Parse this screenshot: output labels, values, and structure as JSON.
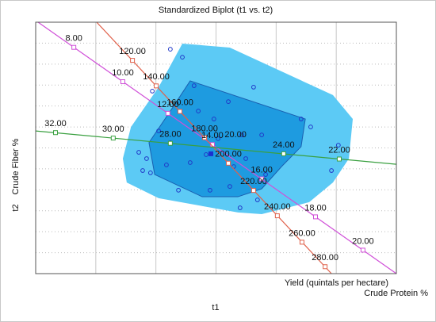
{
  "chart_data": {
    "type": "biplot",
    "title": "Standardized Biplot (t1 vs. t2)",
    "xlabel": "t1",
    "ylabel": "t2",
    "xlim": [
      -6,
      6
    ],
    "ylim": [
      -6,
      6
    ],
    "xticks": [
      -6,
      -4,
      -2,
      0,
      2,
      4,
      6
    ],
    "yticks": [
      -6,
      -5,
      -4,
      -3,
      -2,
      -1,
      0,
      1,
      2,
      3,
      4,
      5,
      6
    ],
    "grid": true,
    "hulls": [
      {
        "color": "#5ccaf5",
        "x": [
          -1.12,
          0.46,
          3.89,
          4.55,
          4.42,
          3.89,
          3.1,
          1.52,
          0.73,
          -1.91,
          -2.97,
          -3.1,
          -2.83,
          -1.91
        ],
        "y": [
          4.98,
          4.79,
          2.52,
          1.38,
          -0.51,
          -1.65,
          -2.59,
          -3.16,
          -3.08,
          -2.4,
          -1.65,
          -0.51,
          1.0,
          2.9
        ]
      },
      {
        "color": "#1e9be0",
        "x": [
          -0.86,
          2.97,
          2.83,
          2.18,
          1.52,
          0.73,
          -0.46,
          -2.04,
          -2.23,
          -1.52
        ],
        "y": [
          3.2,
          1.38,
          0.06,
          -0.89,
          -1.95,
          -2.33,
          -2.33,
          -1.27,
          0.25,
          1.76
        ]
      }
    ],
    "points": {
      "color": "#2038c8",
      "x": [
        -1.52,
        -1.12,
        -2.12,
        -0.73,
        0.41,
        1.25,
        -1.91,
        -1.52,
        -2.57,
        -2.31,
        -1.65,
        -2.44,
        -2.18,
        -0.86,
        -0.33,
        0.07,
        0.86,
        0.99,
        0.59,
        -1.25,
        -0.2,
        0.46,
        0.8,
        1.38,
        1.65,
        1.52,
        3.15,
        2.83,
        3.84,
        4.07,
        -0.07,
        -0.59
      ],
      "y": [
        4.71,
        4.33,
        2.71,
        2.97,
        2.21,
        2.9,
        0.81,
        0.25,
        -0.21,
        -0.51,
        -0.81,
        -1.08,
        -1.19,
        -0.7,
        -0.32,
        0.44,
        0.62,
        -0.51,
        -0.89,
        -2.02,
        -2.02,
        -1.84,
        -2.86,
        -2.48,
        -1.27,
        0.62,
        1.0,
        1.38,
        -1.08,
        0.13,
        1.38,
        1.76
      ]
    },
    "centroid": {
      "x": -0.17,
      "y": -0.28,
      "color": "#1a30d0"
    },
    "biplot_axes": [
      {
        "name": "Crude Fiber %",
        "color": "#d050d8",
        "x": [
          -5.92,
          6.0
        ],
        "y": [
          6.0,
          -6.0
        ],
        "ticks": [
          {
            "value": 8,
            "label": "8.00",
            "x": -4.73,
            "y": 4.8
          },
          {
            "value": 10,
            "label": "10.00",
            "x": -3.1,
            "y": 3.16
          },
          {
            "value": 12,
            "label": "12.00",
            "x": -1.6,
            "y": 1.65
          },
          {
            "value": 14,
            "label": "14.00",
            "x": -0.12,
            "y": 0.16
          },
          {
            "value": 16,
            "label": "16.00",
            "x": 1.52,
            "y": -1.48
          },
          {
            "value": 18,
            "label": "18.00",
            "x": 3.31,
            "y": -3.29
          },
          {
            "value": 20,
            "label": "20.00",
            "x": 4.89,
            "y": -4.88
          }
        ]
      },
      {
        "name": "Crude Protein %",
        "color": "#e0604a",
        "x": [
          -3.97,
          3.84
        ],
        "y": [
          6.0,
          -6.0
        ],
        "ticks": [
          {
            "value": 120,
            "label": "120.00",
            "x": -2.78,
            "y": 4.18
          },
          {
            "value": 140,
            "label": "140.00",
            "x": -1.99,
            "y": 2.96
          },
          {
            "value": 160,
            "label": "160.00",
            "x": -1.2,
            "y": 1.74
          },
          {
            "value": 180,
            "label": "180.00",
            "x": -0.38,
            "y": 0.49
          },
          {
            "value": 200,
            "label": "200.00",
            "x": 0.41,
            "y": -0.73
          },
          {
            "value": 220,
            "label": "220.00",
            "x": 1.25,
            "y": -2.03
          },
          {
            "value": 240,
            "label": "240.00",
            "x": 2.04,
            "y": -3.24
          },
          {
            "value": 260,
            "label": "260.00",
            "x": 2.86,
            "y": -4.5
          },
          {
            "value": 280,
            "label": "280.00",
            "x": 3.63,
            "y": -5.67
          }
        ]
      },
      {
        "name": "Yield (quintals per hectare)",
        "color": "#3aa040",
        "x": [
          -6.0,
          6.0
        ],
        "y": [
          0.81,
          -0.78
        ],
        "ticks": [
          {
            "value": 32,
            "label": "32.00",
            "x": -5.34,
            "y": 0.73
          },
          {
            "value": 30,
            "label": "30.00",
            "x": -3.42,
            "y": 0.47
          },
          {
            "value": 28,
            "label": "28.00",
            "x": -1.52,
            "y": 0.22
          },
          {
            "value": 24,
            "label": "24.00",
            "x": 2.25,
            "y": -0.28
          },
          {
            "value": 22,
            "label": "22.00",
            "x": 4.1,
            "y": -0.53
          }
        ]
      }
    ],
    "annotations": [
      {
        "text": "20.00",
        "x": 0.65,
        "y": 0.62
      }
    ]
  }
}
